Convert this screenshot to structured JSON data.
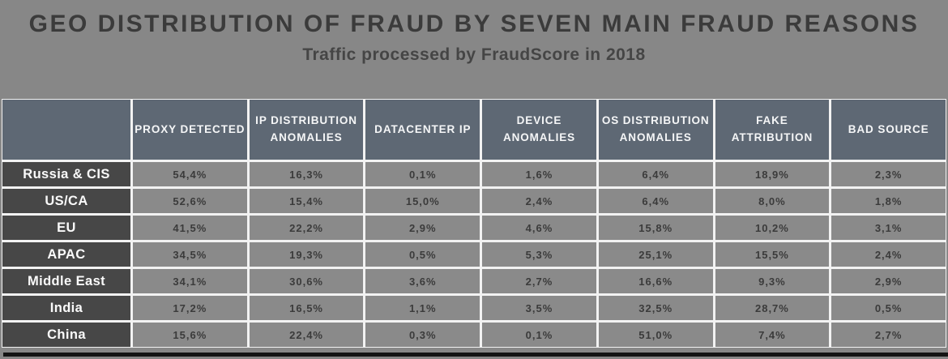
{
  "header": {
    "title": "GEO DISTRIBUTION OF FRAUD BY SEVEN MAIN FRAUD REASONS",
    "subtitle": "Traffic processed by FraudScore in 2018"
  },
  "colors": {
    "page_bg": "#878787",
    "header_row_bg": "#5e6874",
    "row_label_bg": "#474747",
    "value_cell_bg": "#8a8a8a",
    "header_text": "#ffffff",
    "value_text": "#3b3b3b",
    "grid_gap": "#f2f2f2",
    "bottom_bar": "#141414"
  },
  "chart_data": {
    "type": "table",
    "title": "GEO DISTRIBUTION OF FRAUD BY SEVEN MAIN FRAUD REASONS",
    "subtitle": "Traffic processed by FraudScore in 2018",
    "columns": [
      "PROXY DETECTED",
      "IP DISTRIBUTION ANOMALIES",
      "DATACENTER IP",
      "DEVICE ANOMALIES",
      "OS DISTRIBUTION ANOMALIES",
      "FAKE ATTRIBUTION",
      "BAD SOURCE"
    ],
    "rows": [
      {
        "label": "Russia & CIS",
        "values": [
          "54,4%",
          "16,3%",
          "0,1%",
          "1,6%",
          "6,4%",
          "18,9%",
          "2,3%"
        ]
      },
      {
        "label": "US/CA",
        "values": [
          "52,6%",
          "15,4%",
          "15,0%",
          "2,4%",
          "6,4%",
          "8,0%",
          "1,8%"
        ]
      },
      {
        "label": "EU",
        "values": [
          "41,5%",
          "22,2%",
          "2,9%",
          "4,6%",
          "15,8%",
          "10,2%",
          "3,1%"
        ]
      },
      {
        "label": "APAC",
        "values": [
          "34,5%",
          "19,3%",
          "0,5%",
          "5,3%",
          "25,1%",
          "15,5%",
          "2,4%"
        ]
      },
      {
        "label": "Middle East",
        "values": [
          "34,1%",
          "30,6%",
          "3,6%",
          "2,7%",
          "16,6%",
          "9,3%",
          "2,9%"
        ]
      },
      {
        "label": "India",
        "values": [
          "17,2%",
          "16,5%",
          "1,1%",
          "3,5%",
          "32,5%",
          "28,7%",
          "0,5%"
        ]
      },
      {
        "label": "China",
        "values": [
          "15,6%",
          "22,4%",
          "0,3%",
          "0,1%",
          "51,0%",
          "7,4%",
          "2,7%"
        ]
      }
    ]
  }
}
